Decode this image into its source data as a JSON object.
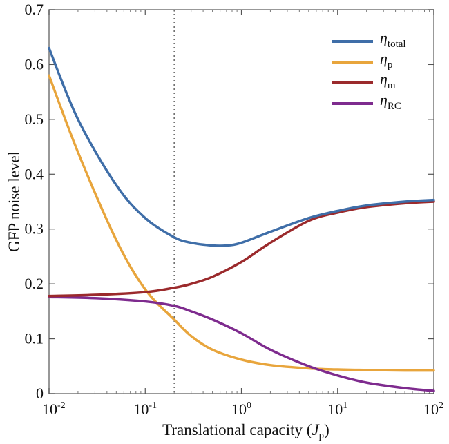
{
  "chart_data": {
    "type": "line",
    "title": "",
    "xlabel": {
      "main": "Translational capacity (",
      "var": "J",
      "sub": "p",
      "close": ")"
    },
    "ylabel": "GFP noise level",
    "x_scale": "log",
    "xlim": [
      0.01,
      100
    ],
    "ylim": [
      0,
      0.7
    ],
    "x_ticks": [
      {
        "value": 0.01,
        "base": "10",
        "exp": "-2"
      },
      {
        "value": 0.1,
        "base": "10",
        "exp": "-1"
      },
      {
        "value": 1,
        "base": "10",
        "exp": "0"
      },
      {
        "value": 10,
        "base": "10",
        "exp": "1"
      },
      {
        "value": 100,
        "base": "10",
        "exp": "2"
      }
    ],
    "y_ticks": [
      "0",
      "0.1",
      "0.2",
      "0.3",
      "0.4",
      "0.5",
      "0.6",
      "0.7"
    ],
    "y_tick_values": [
      0,
      0.1,
      0.2,
      0.3,
      0.4,
      0.5,
      0.6,
      0.7
    ],
    "vline_x": 0.2,
    "legend_position": "top-right",
    "series": [
      {
        "name": "η",
        "sub": "total",
        "color": "#3f6ea8",
        "x": [
          0.01,
          0.02,
          0.05,
          0.1,
          0.2,
          0.3,
          0.5,
          0.7,
          1,
          2,
          5,
          10,
          20,
          50,
          100
        ],
        "y": [
          0.63,
          0.5,
          0.38,
          0.32,
          0.285,
          0.275,
          0.27,
          0.27,
          0.275,
          0.295,
          0.32,
          0.333,
          0.343,
          0.35,
          0.353
        ]
      },
      {
        "name": "η",
        "sub": "p",
        "color": "#e8a53c",
        "x": [
          0.01,
          0.02,
          0.05,
          0.1,
          0.2,
          0.3,
          0.5,
          1,
          2,
          5,
          10,
          20,
          50,
          100
        ],
        "y": [
          0.58,
          0.44,
          0.28,
          0.19,
          0.135,
          0.105,
          0.08,
          0.062,
          0.052,
          0.046,
          0.044,
          0.043,
          0.042,
          0.042
        ]
      },
      {
        "name": "η",
        "sub": "m",
        "color": "#9b2a2c",
        "x": [
          0.01,
          0.03,
          0.1,
          0.2,
          0.3,
          0.5,
          1,
          2,
          5,
          10,
          20,
          50,
          100
        ],
        "y": [
          0.178,
          0.18,
          0.185,
          0.193,
          0.2,
          0.213,
          0.24,
          0.275,
          0.315,
          0.33,
          0.34,
          0.347,
          0.35
        ]
      },
      {
        "name": "η",
        "sub": "RC",
        "color": "#7e2b8e",
        "x": [
          0.01,
          0.03,
          0.1,
          0.2,
          0.3,
          0.5,
          1,
          2,
          5,
          10,
          20,
          50,
          100
        ],
        "y": [
          0.176,
          0.174,
          0.168,
          0.16,
          0.15,
          0.135,
          0.11,
          0.08,
          0.05,
          0.033,
          0.02,
          0.01,
          0.005
        ]
      }
    ]
  }
}
